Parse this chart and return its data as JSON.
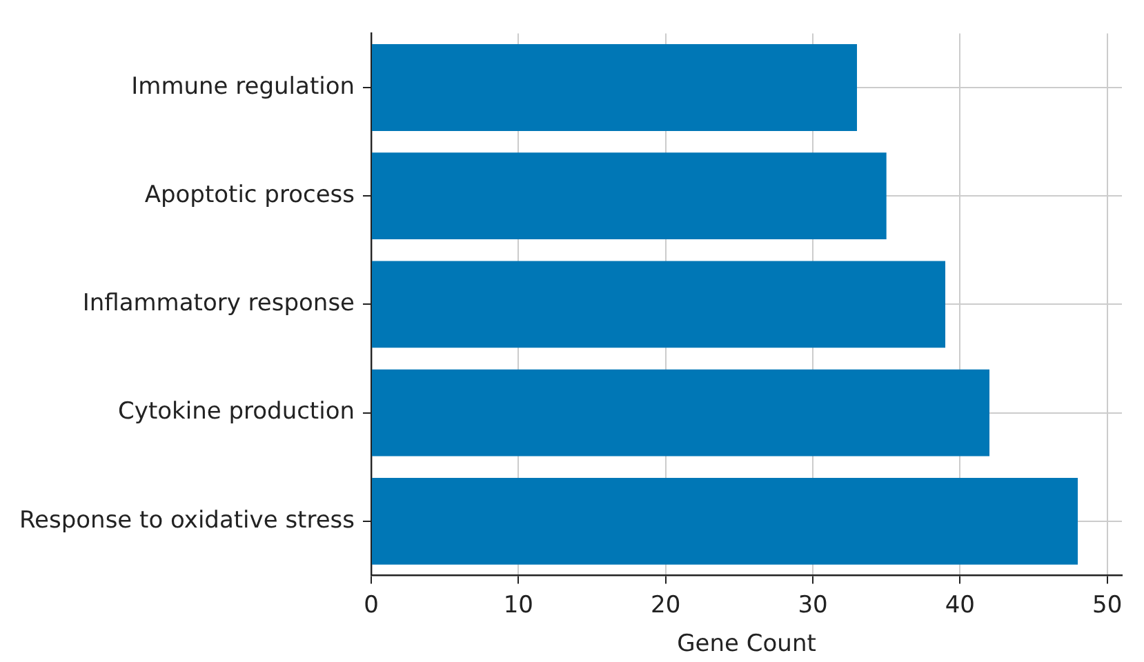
{
  "chart_data": {
    "type": "bar",
    "orientation": "horizontal",
    "xlabel": "Gene Count",
    "categories": [
      "Immune regulation",
      "Apoptotic process",
      "Inflammatory response",
      "Cytokine production",
      "Response to oxidative stress"
    ],
    "values": [
      33,
      35,
      39,
      42,
      48
    ],
    "color": "#0077b6",
    "xlim": [
      0,
      51
    ],
    "xticks": [
      0,
      10,
      20,
      30,
      40,
      50
    ],
    "grid": true,
    "legend": false
  }
}
